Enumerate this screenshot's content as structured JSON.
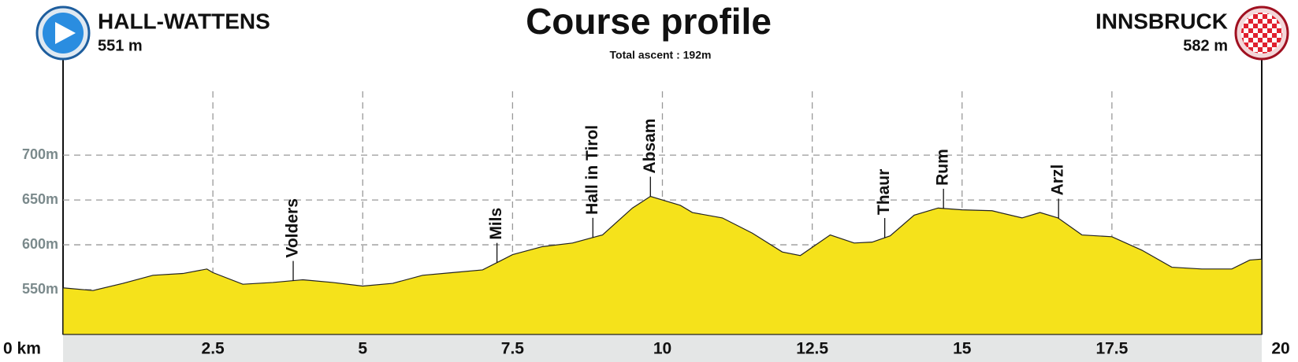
{
  "chart_data": {
    "type": "area",
    "title": "Course profile",
    "subtitle": "Total ascent : 192m",
    "start": {
      "name": "HALL-WATTENS",
      "elevation": "551 m"
    },
    "finish": {
      "name": "INNSBRUCK",
      "elevation": "582 m"
    },
    "x": [
      0,
      0.5,
      1,
      1.5,
      2,
      2.4,
      2.5,
      3,
      3.5,
      4,
      4.5,
      5,
      5.5,
      6,
      6.5,
      7,
      7.5,
      8,
      8.5,
      9,
      9.5,
      9.8,
      10.3,
      10.5,
      11,
      11.5,
      12,
      12.3,
      12.8,
      13.2,
      13.5,
      13.8,
      14.2,
      14.6,
      15,
      15.5,
      16,
      16.3,
      16.6,
      17,
      17.5,
      18,
      18.5,
      19,
      19.5,
      19.8,
      20
    ],
    "values": [
      552,
      549,
      557,
      566,
      568,
      573,
      569,
      556,
      558,
      561,
      558,
      554,
      557,
      566,
      569,
      572,
      589,
      598,
      602,
      611,
      641,
      654,
      644,
      636,
      630,
      613,
      592,
      588,
      611,
      602,
      603,
      610,
      633,
      641,
      639,
      638,
      630,
      636,
      630,
      611,
      609,
      594,
      575,
      573,
      573,
      583,
      584
    ],
    "color": "#f5e21b",
    "annotations": [
      {
        "text": "Volders",
        "x": 3.84
      },
      {
        "text": "Mils",
        "x": 7.24
      },
      {
        "text": "Hall in Tirol",
        "x": 8.84
      },
      {
        "text": "Absam",
        "x": 9.8
      },
      {
        "text": "Thaur",
        "x": 13.71
      },
      {
        "text": "Rum",
        "x": 14.69
      },
      {
        "text": "Arzl",
        "x": 16.61
      }
    ],
    "xlim": [
      0,
      20
    ],
    "xticks": [
      {
        "value": 0,
        "label": "0 km"
      },
      2.5,
      5,
      7.5,
      10,
      12.5,
      15,
      17.5,
      20
    ],
    "ylim": [
      500,
      780
    ],
    "yticks": [
      {
        "value": 550,
        "label": "550m"
      },
      {
        "value": 600,
        "label": "600m"
      },
      {
        "value": 650,
        "label": "650m"
      },
      {
        "value": 700,
        "label": "700m"
      }
    ],
    "grid": true
  }
}
